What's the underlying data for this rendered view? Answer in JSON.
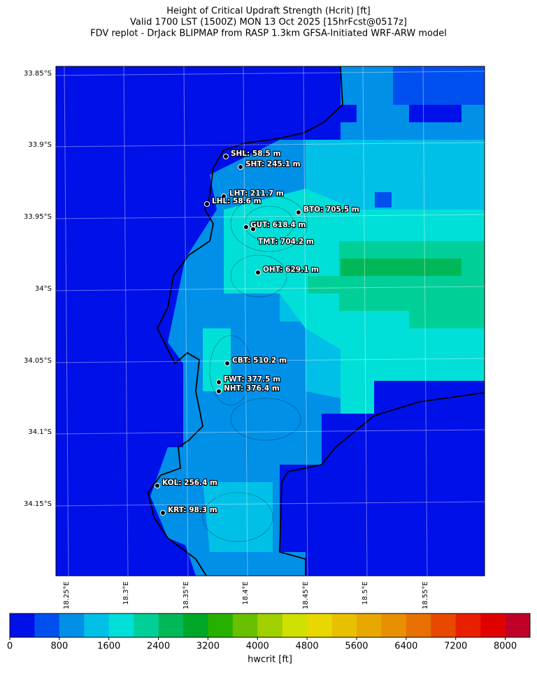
{
  "title": [
    "Height of Critical Updraft Strength (Hcrit) [ft]",
    "Valid 1700 LST (1500Z) MON 13 Oct 2025 [15hrFcst@0517z]",
    "FDV replot - DrJack BLIPMAP from RASP 1.3km GFSA-Initiated WRF-ARW model"
  ],
  "lat_labels": [
    "33.85°S",
    "33.9°S",
    "33.95°S",
    "34°S",
    "34.05°S",
    "34.1°S",
    "34.15°S"
  ],
  "lon_labels": [
    "18.25°E",
    "18.3°E",
    "18.35°E",
    "18.4°E",
    "18.45°E",
    "18.5°E",
    "18.55°E"
  ],
  "stations": [
    "SHL: 58.5 m",
    "SHT: 245.1 m",
    "LHT: 211.7 m",
    "LHL: 58.6 m",
    "BTO: 705.5 m",
    "GUT: 618.4 m",
    "TMT: 704.2 m",
    "OHT: 629.1 m",
    "CBT: 510.2 m",
    "FWT: 377.5 m",
    "NHT: 376.4 m",
    "KOL: 256.4 m",
    "KRT: 98.3 m"
  ],
  "colorbar": {
    "label": "hwcrit [ft]",
    "range": [
      0,
      8400
    ],
    "ticks": [
      0,
      800,
      1600,
      2400,
      3200,
      4000,
      4800,
      5600,
      6400,
      7200,
      8000
    ],
    "colors": [
      "#0010e8",
      "#0050f0",
      "#0090e8",
      "#00c0e8",
      "#00e0d8",
      "#00d098",
      "#00b858",
      "#00a828",
      "#28b000",
      "#68c000",
      "#a0d000",
      "#d0e000",
      "#e8d800",
      "#e8c000",
      "#e8a800",
      "#e89000",
      "#e87000",
      "#e84800",
      "#e82000",
      "#e00000",
      "#c00028"
    ]
  }
}
